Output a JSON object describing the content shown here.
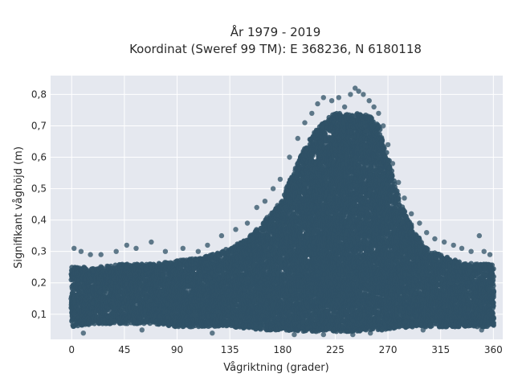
{
  "chart_data": {
    "type": "scatter",
    "title": "År 1979 - 2019",
    "subtitle": "Koordinat (Sweref 99 TM): E 368236, N 6180118",
    "xlabel": "Vågriktning (grader)",
    "ylabel": "Signifikant våghöjd (m)",
    "xlim": [
      -18,
      368
    ],
    "ylim": [
      0.02,
      0.86
    ],
    "xticks": [
      0,
      45,
      90,
      135,
      180,
      225,
      270,
      315,
      360
    ],
    "xtick_labels": [
      "0",
      "45",
      "90",
      "135",
      "180",
      "225",
      "270",
      "315",
      "360"
    ],
    "yticks": [
      0.1,
      0.2,
      0.3,
      0.4,
      0.5,
      0.6,
      0.7,
      0.8
    ],
    "ytick_labels": [
      "0,1",
      "0,2",
      "0,3",
      "0,4",
      "0,5",
      "0,6",
      "0,7",
      "0,8"
    ],
    "grid": true,
    "plot_background": "#e5e8ef",
    "grid_color": "#ffffff",
    "marker_color": "#2f5166",
    "series": [
      {
        "envelope": {
          "x": [
            0,
            20,
            45,
            70,
            90,
            110,
            135,
            150,
            165,
            180,
            195,
            210,
            225,
            235,
            245,
            255,
            262,
            270,
            280,
            290,
            300,
            315,
            330,
            345,
            360
          ],
          "y_min": [
            0.06,
            0.07,
            0.07,
            0.07,
            0.06,
            0.06,
            0.06,
            0.055,
            0.05,
            0.05,
            0.045,
            0.045,
            0.045,
            0.045,
            0.045,
            0.05,
            0.05,
            0.05,
            0.055,
            0.06,
            0.06,
            0.06,
            0.06,
            0.06,
            0.06
          ],
          "y_max": [
            0.25,
            0.25,
            0.26,
            0.26,
            0.27,
            0.28,
            0.31,
            0.34,
            0.4,
            0.47,
            0.6,
            0.7,
            0.74,
            0.74,
            0.74,
            0.73,
            0.7,
            0.6,
            0.46,
            0.38,
            0.32,
            0.29,
            0.27,
            0.26,
            0.26
          ]
        },
        "outliers": [
          [
            2,
            0.31
          ],
          [
            8,
            0.3
          ],
          [
            16,
            0.29
          ],
          [
            25,
            0.29
          ],
          [
            38,
            0.3
          ],
          [
            47,
            0.32
          ],
          [
            55,
            0.31
          ],
          [
            68,
            0.33
          ],
          [
            80,
            0.3
          ],
          [
            95,
            0.31
          ],
          [
            108,
            0.3
          ],
          [
            116,
            0.32
          ],
          [
            128,
            0.35
          ],
          [
            140,
            0.37
          ],
          [
            150,
            0.39
          ],
          [
            158,
            0.44
          ],
          [
            165,
            0.46
          ],
          [
            172,
            0.5
          ],
          [
            178,
            0.53
          ],
          [
            186,
            0.6
          ],
          [
            193,
            0.66
          ],
          [
            199,
            0.71
          ],
          [
            205,
            0.74
          ],
          [
            210,
            0.77
          ],
          [
            215,
            0.79
          ],
          [
            222,
            0.78
          ],
          [
            228,
            0.79
          ],
          [
            233,
            0.76
          ],
          [
            238,
            0.8
          ],
          [
            242,
            0.82
          ],
          [
            245,
            0.81
          ],
          [
            249,
            0.8
          ],
          [
            254,
            0.78
          ],
          [
            258,
            0.76
          ],
          [
            262,
            0.74
          ],
          [
            266,
            0.7
          ],
          [
            270,
            0.64
          ],
          [
            274,
            0.58
          ],
          [
            279,
            0.52
          ],
          [
            284,
            0.47
          ],
          [
            290,
            0.42
          ],
          [
            297,
            0.39
          ],
          [
            303,
            0.36
          ],
          [
            310,
            0.34
          ],
          [
            318,
            0.33
          ],
          [
            326,
            0.32
          ],
          [
            333,
            0.31
          ],
          [
            341,
            0.3
          ],
          [
            348,
            0.35
          ],
          [
            352,
            0.3
          ],
          [
            357,
            0.29
          ],
          [
            10,
            0.04
          ],
          [
            60,
            0.05
          ],
          [
            120,
            0.04
          ],
          [
            190,
            0.035
          ],
          [
            215,
            0.035
          ],
          [
            240,
            0.035
          ],
          [
            255,
            0.04
          ],
          [
            300,
            0.05
          ],
          [
            350,
            0.05
          ]
        ]
      }
    ]
  }
}
